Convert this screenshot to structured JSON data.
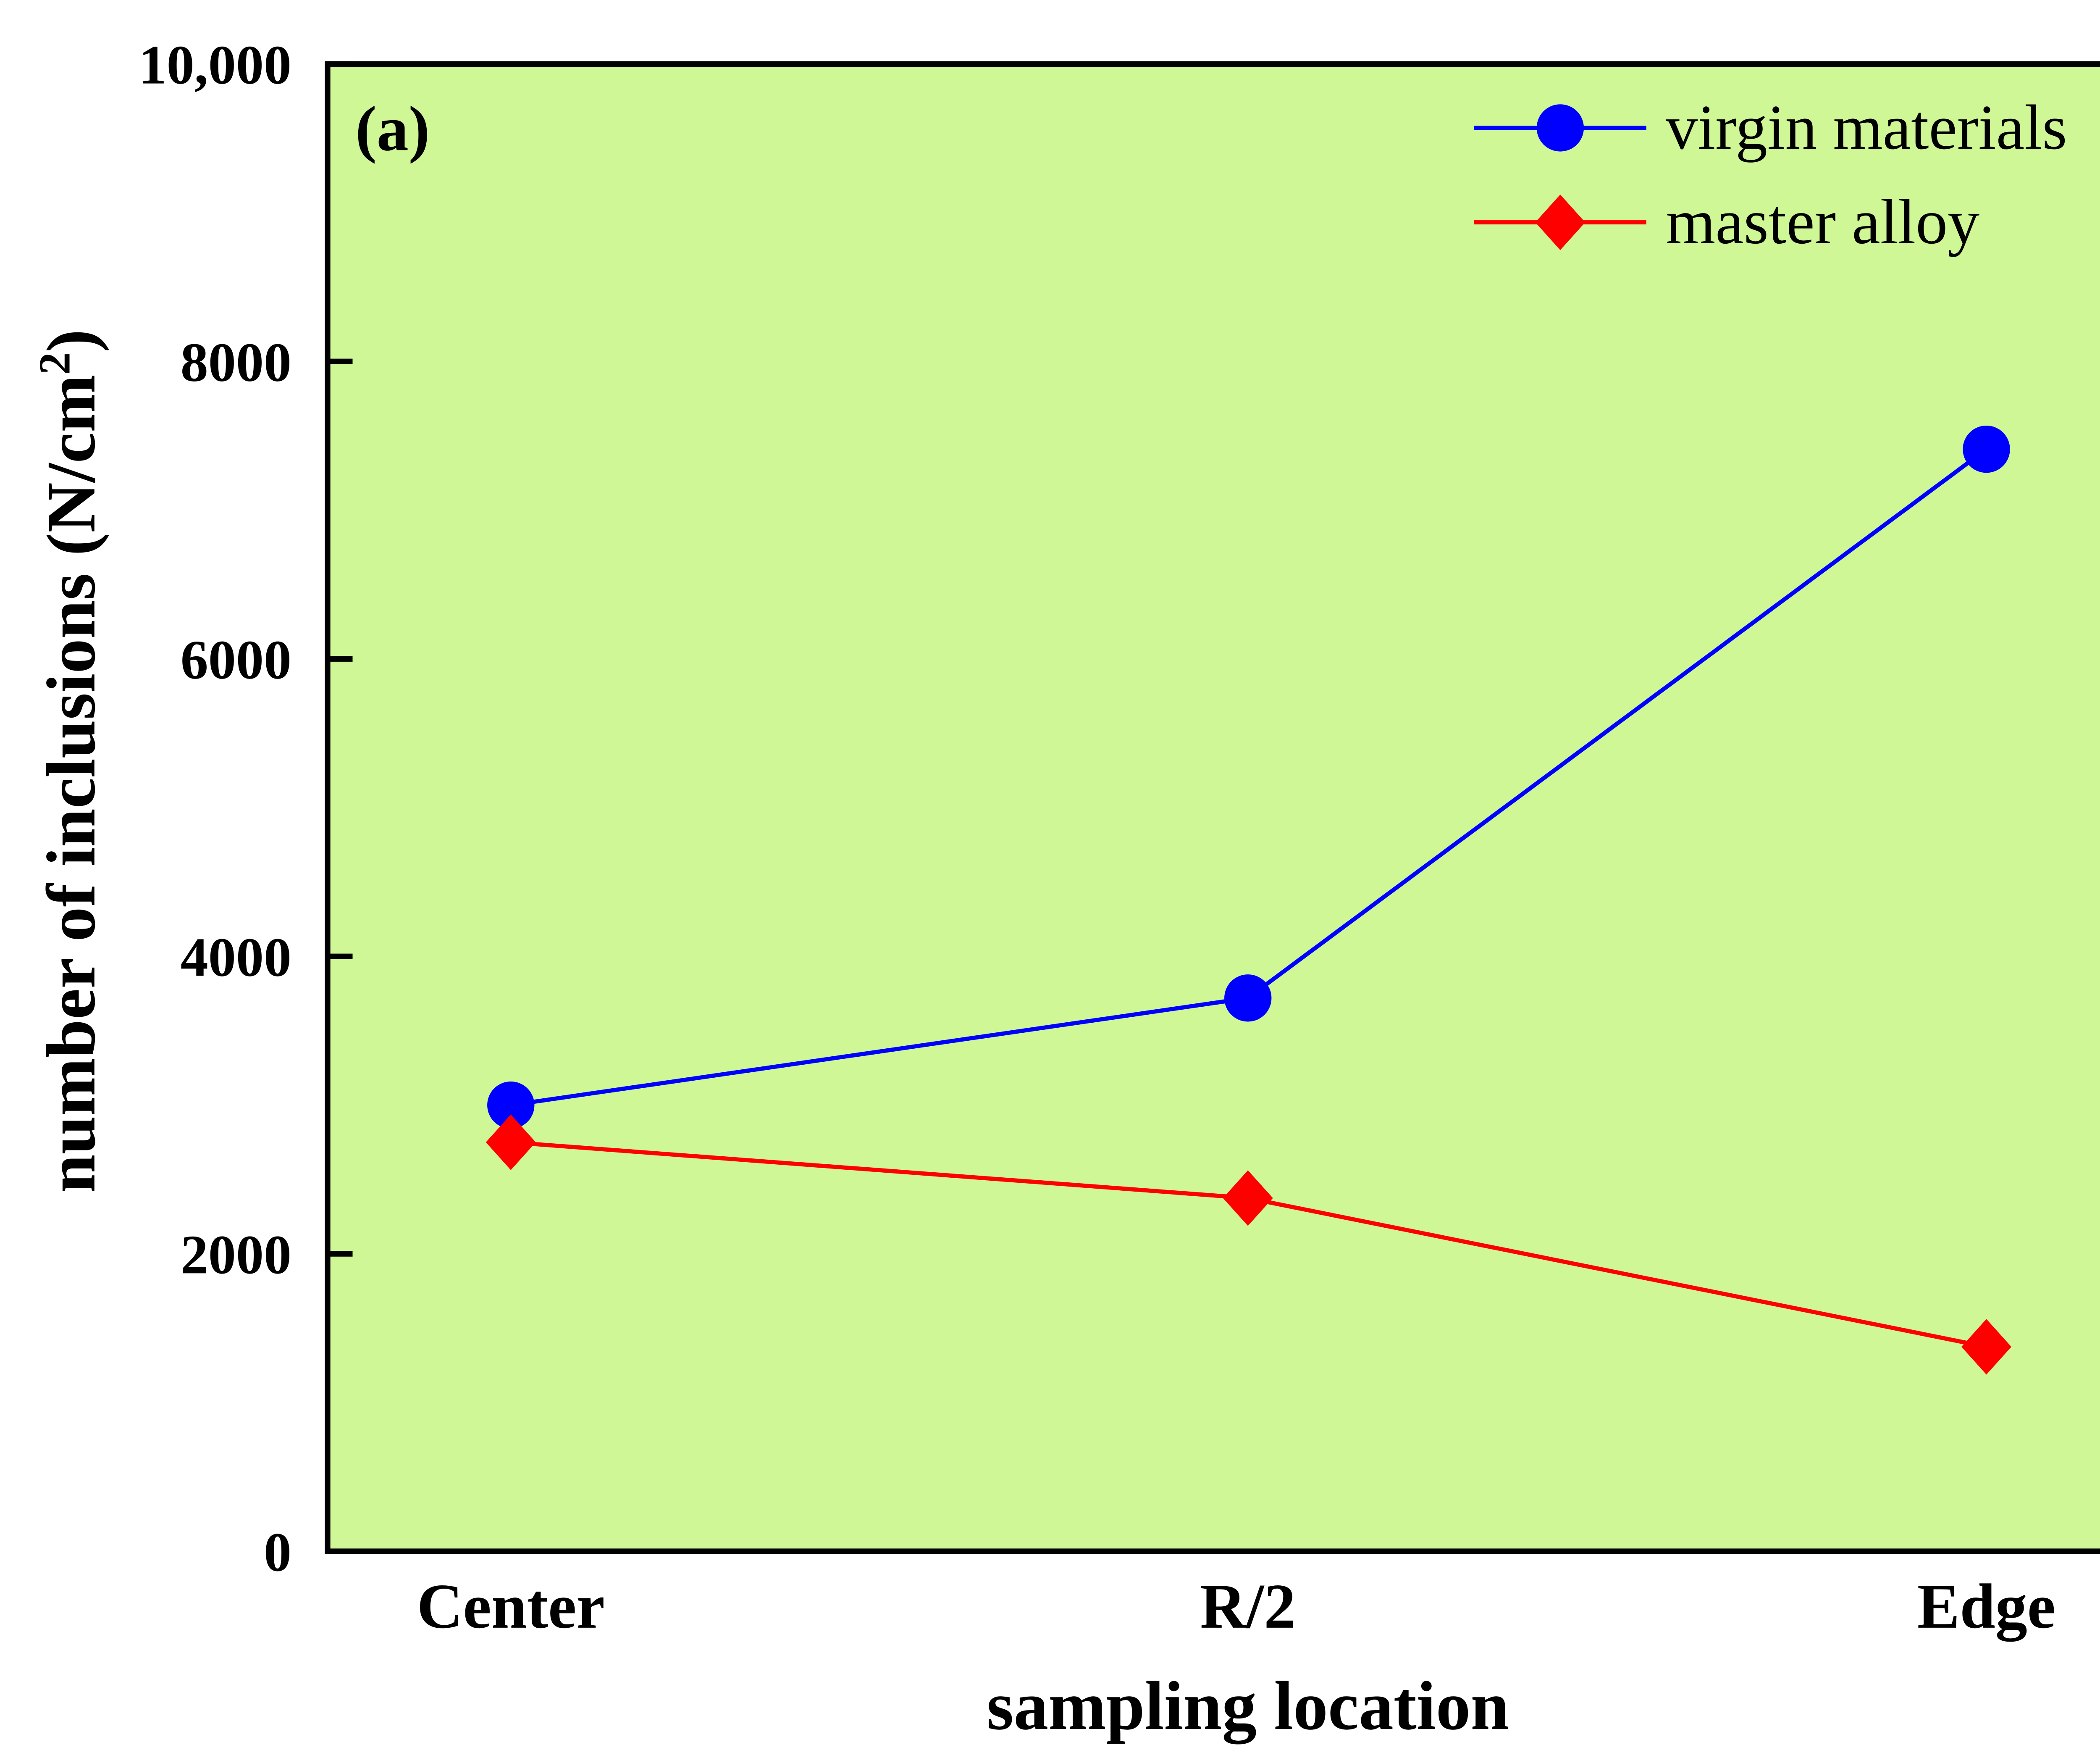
{
  "chart_data": {
    "type": "line",
    "panel_label": "(a)",
    "xlabel": "sampling location",
    "ylabel": "number of inclusions (N/cm",
    "ylabel_sup": "2",
    "ylabel_close": ")",
    "categories": [
      "Center",
      "R/2",
      "Edge"
    ],
    "ylim": [
      0,
      10000
    ],
    "yticks": [
      0,
      2000,
      4000,
      6000,
      8000,
      10000
    ],
    "ytick_labels": [
      "0",
      "2000",
      "4000",
      "6000",
      "8000",
      "10,000"
    ],
    "grid": false,
    "legend_position": "top-right",
    "background_color": "#CFF796",
    "series": [
      {
        "name": "virgin materials",
        "color": "#0000FF",
        "marker": "circle",
        "values": [
          3000,
          3720,
          7410
        ]
      },
      {
        "name": "master alloy",
        "color": "#FF0000",
        "marker": "diamond",
        "values": [
          2750,
          2375,
          1375
        ]
      }
    ]
  }
}
